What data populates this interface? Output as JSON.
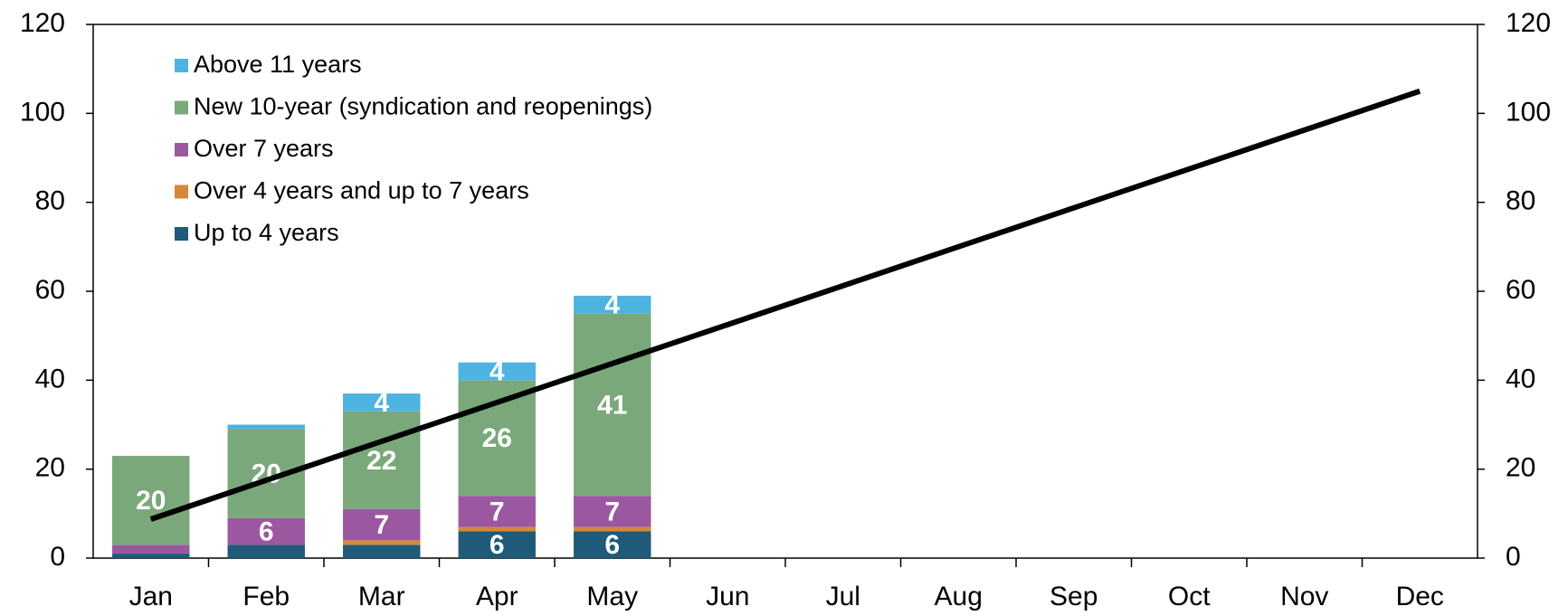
{
  "chart_data": {
    "type": "stacked_bar_line",
    "categories": [
      "Jan",
      "Feb",
      "Mar",
      "Apr",
      "May",
      "Jun",
      "Jul",
      "Aug",
      "Sep",
      "Oct",
      "Nov",
      "Dec"
    ],
    "series": [
      {
        "name": "Up to 4 years",
        "color": "#1f5a7a",
        "values": [
          1,
          3,
          3,
          6,
          6,
          null,
          null,
          null,
          null,
          null,
          null,
          null
        ],
        "value_labels": [
          null,
          null,
          null,
          "6",
          "6",
          null,
          null,
          null,
          null,
          null,
          null,
          null
        ]
      },
      {
        "name": "Over 4 years and up to 7 years",
        "color": "#d4883a",
        "values": [
          0,
          0,
          1,
          1,
          1,
          null,
          null,
          null,
          null,
          null,
          null,
          null
        ],
        "value_labels": [
          null,
          null,
          null,
          null,
          null,
          null,
          null,
          null,
          null,
          null,
          null,
          null
        ]
      },
      {
        "name": "Over 7 years",
        "color": "#9b58a0",
        "values": [
          2,
          6,
          7,
          7,
          7,
          null,
          null,
          null,
          null,
          null,
          null,
          null
        ],
        "value_labels": [
          null,
          "6",
          "7",
          "7",
          "7",
          null,
          null,
          null,
          null,
          null,
          null,
          null
        ]
      },
      {
        "name": "New 10-year (syndication and reopenings)",
        "color": "#7aa87a",
        "values": [
          20,
          20,
          22,
          26,
          41,
          null,
          null,
          null,
          null,
          null,
          null,
          null
        ],
        "value_labels": [
          "20",
          "20",
          "22",
          "26",
          "41",
          null,
          null,
          null,
          null,
          null,
          null,
          null
        ]
      },
      {
        "name": "Above 11 years",
        "color": "#4db3e0",
        "values": [
          0,
          1,
          4,
          4,
          4,
          null,
          null,
          null,
          null,
          null,
          null,
          null
        ],
        "value_labels": [
          null,
          null,
          "4",
          "4",
          "4",
          null,
          null,
          null,
          null,
          null,
          null,
          null
        ]
      }
    ],
    "line": {
      "color": "#000000",
      "axis": "y2",
      "values": [
        8.75,
        17.5,
        26.25,
        35,
        43.75,
        52.5,
        61.25,
        70,
        78.75,
        87.5,
        96.25,
        105
      ]
    },
    "ylim": [
      0,
      120
    ],
    "yticks": [
      0,
      20,
      40,
      60,
      80,
      100,
      120
    ],
    "y2lim": [
      0,
      120
    ],
    "y2ticks": [
      0,
      20,
      40,
      60,
      80,
      100,
      120
    ],
    "legend": "top-left"
  }
}
